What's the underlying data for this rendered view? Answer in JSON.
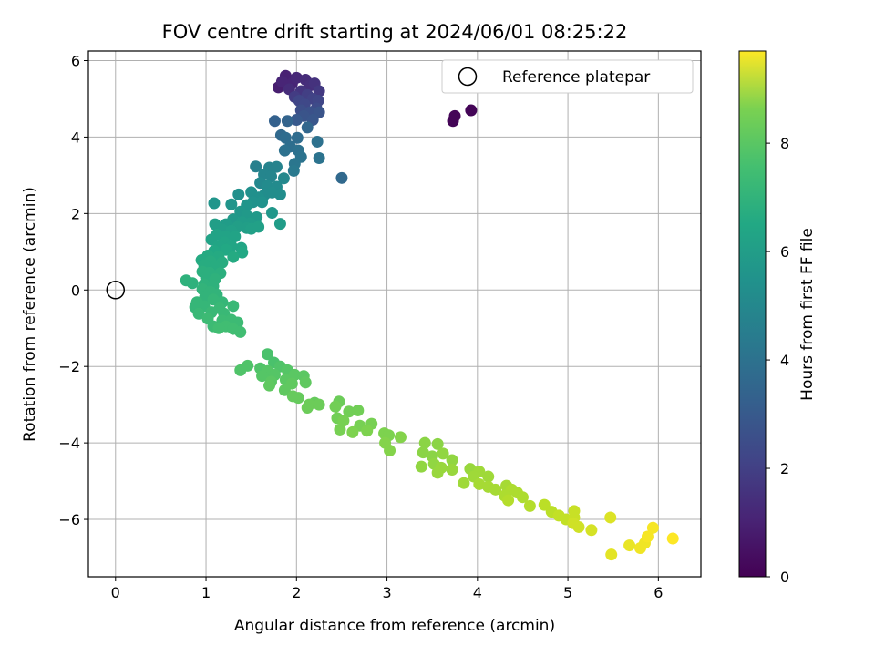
{
  "chart_data": {
    "type": "scatter",
    "title": "FOV centre drift starting at 2024/06/01 08:25:22",
    "xlabel": "Angular distance from reference (arcmin)",
    "ylabel": "Rotation from reference (arcmin)",
    "xlim": [
      -0.3,
      6.47
    ],
    "ylim": [
      -7.5,
      6.25
    ],
    "xticks": [
      0,
      1,
      2,
      3,
      4,
      5,
      6
    ],
    "yticks": [
      -6,
      -4,
      -2,
      0,
      2,
      4,
      6
    ],
    "grid": true,
    "legend": {
      "placement": "upper right",
      "entries": [
        "Reference platepar"
      ]
    },
    "reference_point": {
      "x": 0,
      "y": 0,
      "label": "Reference platepar",
      "marker": "open-circle"
    },
    "colorbar": {
      "label": "Hours from first FF file",
      "range": [
        0,
        9.7
      ],
      "ticks": [
        0,
        2,
        4,
        6,
        8
      ],
      "colormap": "viridis"
    },
    "points": [
      {
        "x": 3.73,
        "y": 4.42,
        "t": 0.1
      },
      {
        "x": 3.75,
        "y": 4.55,
        "t": 0.1
      },
      {
        "x": 3.93,
        "y": 4.7,
        "t": 0.1
      },
      {
        "x": 1.8,
        "y": 5.3,
        "t": 0.8
      },
      {
        "x": 1.88,
        "y": 5.6,
        "t": 0.9
      },
      {
        "x": 1.95,
        "y": 5.4,
        "t": 1.0
      },
      {
        "x": 2.0,
        "y": 5.55,
        "t": 1.1
      },
      {
        "x": 1.84,
        "y": 5.45,
        "t": 1.0
      },
      {
        "x": 2.1,
        "y": 5.5,
        "t": 1.2
      },
      {
        "x": 2.15,
        "y": 5.35,
        "t": 1.3
      },
      {
        "x": 2.2,
        "y": 5.4,
        "t": 1.4
      },
      {
        "x": 1.92,
        "y": 5.25,
        "t": 1.2
      },
      {
        "x": 2.05,
        "y": 5.2,
        "t": 1.5
      },
      {
        "x": 2.25,
        "y": 5.2,
        "t": 1.6
      },
      {
        "x": 1.98,
        "y": 5.05,
        "t": 1.7
      },
      {
        "x": 2.12,
        "y": 5.1,
        "t": 1.8
      },
      {
        "x": 2.18,
        "y": 5.0,
        "t": 1.9
      },
      {
        "x": 2.03,
        "y": 4.95,
        "t": 2.0
      },
      {
        "x": 2.24,
        "y": 4.95,
        "t": 2.0
      },
      {
        "x": 2.09,
        "y": 4.85,
        "t": 2.1
      },
      {
        "x": 2.22,
        "y": 4.75,
        "t": 2.2
      },
      {
        "x": 2.05,
        "y": 4.7,
        "t": 2.3
      },
      {
        "x": 2.15,
        "y": 4.65,
        "t": 2.4
      },
      {
        "x": 2.25,
        "y": 4.65,
        "t": 2.5
      },
      {
        "x": 2.08,
        "y": 4.55,
        "t": 2.5
      },
      {
        "x": 2.18,
        "y": 4.45,
        "t": 2.6
      },
      {
        "x": 2.0,
        "y": 4.45,
        "t": 2.7
      },
      {
        "x": 1.76,
        "y": 4.42,
        "t": 3.0
      },
      {
        "x": 1.9,
        "y": 4.42,
        "t": 3.1
      },
      {
        "x": 2.12,
        "y": 4.25,
        "t": 3.2
      },
      {
        "x": 1.83,
        "y": 4.05,
        "t": 3.3
      },
      {
        "x": 1.88,
        "y": 3.98,
        "t": 3.4
      },
      {
        "x": 2.01,
        "y": 3.98,
        "t": 3.4
      },
      {
        "x": 1.93,
        "y": 3.75,
        "t": 3.5
      },
      {
        "x": 2.02,
        "y": 3.65,
        "t": 3.6
      },
      {
        "x": 1.87,
        "y": 3.65,
        "t": 3.6
      },
      {
        "x": 2.23,
        "y": 3.88,
        "t": 3.6
      },
      {
        "x": 2.05,
        "y": 3.48,
        "t": 3.7
      },
      {
        "x": 2.25,
        "y": 3.45,
        "t": 3.7
      },
      {
        "x": 1.98,
        "y": 3.3,
        "t": 3.8
      },
      {
        "x": 1.97,
        "y": 3.12,
        "t": 3.9
      },
      {
        "x": 2.5,
        "y": 2.93,
        "t": 3.3
      },
      {
        "x": 1.55,
        "y": 3.23,
        "t": 4.2
      },
      {
        "x": 1.7,
        "y": 3.2,
        "t": 4.3
      },
      {
        "x": 1.78,
        "y": 3.22,
        "t": 4.3
      },
      {
        "x": 1.64,
        "y": 3.02,
        "t": 4.4
      },
      {
        "x": 1.72,
        "y": 2.97,
        "t": 4.4
      },
      {
        "x": 1.86,
        "y": 2.92,
        "t": 4.5
      },
      {
        "x": 1.6,
        "y": 2.8,
        "t": 4.5
      },
      {
        "x": 1.68,
        "y": 2.72,
        "t": 4.6
      },
      {
        "x": 1.78,
        "y": 2.7,
        "t": 4.6
      },
      {
        "x": 1.82,
        "y": 2.5,
        "t": 4.7
      },
      {
        "x": 1.65,
        "y": 2.5,
        "t": 4.7
      },
      {
        "x": 1.73,
        "y": 2.55,
        "t": 4.7
      },
      {
        "x": 1.5,
        "y": 2.56,
        "t": 4.8
      },
      {
        "x": 1.58,
        "y": 2.42,
        "t": 4.8
      },
      {
        "x": 1.36,
        "y": 2.5,
        "t": 4.8
      },
      {
        "x": 1.52,
        "y": 2.3,
        "t": 4.9
      },
      {
        "x": 1.62,
        "y": 2.3,
        "t": 4.9
      },
      {
        "x": 1.45,
        "y": 2.22,
        "t": 5.0
      },
      {
        "x": 1.28,
        "y": 2.24,
        "t": 5.0
      },
      {
        "x": 1.09,
        "y": 2.27,
        "t": 5.0
      },
      {
        "x": 1.38,
        "y": 2.05,
        "t": 5.1
      },
      {
        "x": 1.73,
        "y": 2.02,
        "t": 5.1
      },
      {
        "x": 1.45,
        "y": 1.95,
        "t": 5.2
      },
      {
        "x": 1.56,
        "y": 1.9,
        "t": 5.2
      },
      {
        "x": 1.3,
        "y": 1.85,
        "t": 5.2
      },
      {
        "x": 1.82,
        "y": 1.73,
        "t": 5.3
      },
      {
        "x": 1.4,
        "y": 1.78,
        "t": 5.3
      },
      {
        "x": 1.49,
        "y": 1.75,
        "t": 5.3
      },
      {
        "x": 1.22,
        "y": 1.72,
        "t": 5.3
      },
      {
        "x": 1.1,
        "y": 1.72,
        "t": 5.4
      },
      {
        "x": 1.35,
        "y": 1.65,
        "t": 5.4
      },
      {
        "x": 1.18,
        "y": 1.58,
        "t": 5.4
      },
      {
        "x": 1.45,
        "y": 1.62,
        "t": 5.4
      },
      {
        "x": 1.28,
        "y": 1.55,
        "t": 5.5
      },
      {
        "x": 1.5,
        "y": 1.6,
        "t": 5.5
      },
      {
        "x": 1.58,
        "y": 1.65,
        "t": 5.5
      },
      {
        "x": 1.22,
        "y": 1.4,
        "t": 5.6
      },
      {
        "x": 1.12,
        "y": 1.45,
        "t": 5.6
      },
      {
        "x": 1.32,
        "y": 1.4,
        "t": 5.6
      },
      {
        "x": 1.06,
        "y": 1.32,
        "t": 5.6
      },
      {
        "x": 1.2,
        "y": 1.25,
        "t": 5.7
      },
      {
        "x": 1.39,
        "y": 1.1,
        "t": 5.7
      },
      {
        "x": 1.14,
        "y": 1.15,
        "t": 5.7
      },
      {
        "x": 1.28,
        "y": 1.15,
        "t": 5.7
      },
      {
        "x": 1.09,
        "y": 1.02,
        "t": 5.8
      },
      {
        "x": 1.22,
        "y": 1.05,
        "t": 5.8
      },
      {
        "x": 1.4,
        "y": 0.98,
        "t": 5.8
      },
      {
        "x": 1.02,
        "y": 0.9,
        "t": 5.9
      },
      {
        "x": 1.14,
        "y": 0.88,
        "t": 5.9
      },
      {
        "x": 1.3,
        "y": 0.86,
        "t": 5.9
      },
      {
        "x": 0.95,
        "y": 0.78,
        "t": 5.9
      },
      {
        "x": 1.05,
        "y": 0.75,
        "t": 6.0
      },
      {
        "x": 1.18,
        "y": 0.72,
        "t": 6.0
      },
      {
        "x": 0.98,
        "y": 0.65,
        "t": 6.0
      },
      {
        "x": 1.1,
        "y": 0.6,
        "t": 6.0
      },
      {
        "x": 0.96,
        "y": 0.48,
        "t": 6.1
      },
      {
        "x": 1.04,
        "y": 0.45,
        "t": 6.1
      },
      {
        "x": 1.16,
        "y": 0.44,
        "t": 6.1
      },
      {
        "x": 1.0,
        "y": 0.32,
        "t": 6.1
      },
      {
        "x": 1.1,
        "y": 0.28,
        "t": 6.2
      },
      {
        "x": 0.78,
        "y": 0.25,
        "t": 6.2
      },
      {
        "x": 0.85,
        "y": 0.18,
        "t": 6.2
      },
      {
        "x": 0.98,
        "y": 0.15,
        "t": 6.2
      },
      {
        "x": 1.08,
        "y": 0.1,
        "t": 6.2
      },
      {
        "x": 0.96,
        "y": 0.02,
        "t": 6.3
      },
      {
        "x": 1.05,
        "y": -0.05,
        "t": 6.3
      },
      {
        "x": 1.12,
        "y": -0.12,
        "t": 6.3
      },
      {
        "x": 0.99,
        "y": -0.18,
        "t": 6.3
      },
      {
        "x": 1.08,
        "y": -0.25,
        "t": 6.4
      },
      {
        "x": 0.9,
        "y": -0.32,
        "t": 6.4
      },
      {
        "x": 1.18,
        "y": -0.32,
        "t": 6.4
      },
      {
        "x": 0.88,
        "y": -0.45,
        "t": 6.4
      },
      {
        "x": 0.98,
        "y": -0.42,
        "t": 6.4
      },
      {
        "x": 1.15,
        "y": -0.48,
        "t": 6.5
      },
      {
        "x": 1.3,
        "y": -0.42,
        "t": 6.5
      },
      {
        "x": 0.92,
        "y": -0.62,
        "t": 6.5
      },
      {
        "x": 1.06,
        "y": -0.58,
        "t": 6.5
      },
      {
        "x": 1.2,
        "y": -0.62,
        "t": 6.5
      },
      {
        "x": 1.02,
        "y": -0.75,
        "t": 6.6
      },
      {
        "x": 1.18,
        "y": -0.8,
        "t": 6.6
      },
      {
        "x": 1.28,
        "y": -0.78,
        "t": 6.6
      },
      {
        "x": 1.35,
        "y": -0.85,
        "t": 6.6
      },
      {
        "x": 1.08,
        "y": -0.95,
        "t": 6.6
      },
      {
        "x": 1.22,
        "y": -0.95,
        "t": 6.7
      },
      {
        "x": 1.14,
        "y": -1.0,
        "t": 6.7
      },
      {
        "x": 1.3,
        "y": -1.02,
        "t": 6.7
      },
      {
        "x": 1.38,
        "y": -1.1,
        "t": 6.7
      },
      {
        "x": 1.68,
        "y": -1.68,
        "t": 6.9
      },
      {
        "x": 1.75,
        "y": -1.9,
        "t": 6.9
      },
      {
        "x": 1.46,
        "y": -1.98,
        "t": 7.0
      },
      {
        "x": 1.38,
        "y": -2.1,
        "t": 7.0
      },
      {
        "x": 1.6,
        "y": -2.05,
        "t": 7.0
      },
      {
        "x": 1.82,
        "y": -2.0,
        "t": 7.0
      },
      {
        "x": 1.68,
        "y": -2.12,
        "t": 7.1
      },
      {
        "x": 1.9,
        "y": -2.1,
        "t": 7.1
      },
      {
        "x": 1.76,
        "y": -2.22,
        "t": 7.1
      },
      {
        "x": 1.62,
        "y": -2.25,
        "t": 7.1
      },
      {
        "x": 1.98,
        "y": -2.22,
        "t": 7.2
      },
      {
        "x": 2.08,
        "y": -2.25,
        "t": 7.2
      },
      {
        "x": 1.88,
        "y": -2.35,
        "t": 7.2
      },
      {
        "x": 1.72,
        "y": -2.4,
        "t": 7.2
      },
      {
        "x": 2.1,
        "y": -2.42,
        "t": 7.3
      },
      {
        "x": 1.95,
        "y": -2.45,
        "t": 7.3
      },
      {
        "x": 1.7,
        "y": -2.5,
        "t": 7.3
      },
      {
        "x": 1.87,
        "y": -2.62,
        "t": 7.3
      },
      {
        "x": 2.02,
        "y": -2.82,
        "t": 7.4
      },
      {
        "x": 1.96,
        "y": -2.78,
        "t": 7.4
      },
      {
        "x": 2.2,
        "y": -2.95,
        "t": 7.4
      },
      {
        "x": 2.14,
        "y": -3.0,
        "t": 7.5
      },
      {
        "x": 2.25,
        "y": -3.0,
        "t": 7.5
      },
      {
        "x": 2.12,
        "y": -3.08,
        "t": 7.5
      },
      {
        "x": 2.47,
        "y": -2.92,
        "t": 7.5
      },
      {
        "x": 2.43,
        "y": -3.05,
        "t": 7.6
      },
      {
        "x": 2.58,
        "y": -3.18,
        "t": 7.6
      },
      {
        "x": 2.68,
        "y": -3.15,
        "t": 7.6
      },
      {
        "x": 2.45,
        "y": -3.35,
        "t": 7.6
      },
      {
        "x": 2.52,
        "y": -3.42,
        "t": 7.7
      },
      {
        "x": 2.7,
        "y": -3.55,
        "t": 7.7
      },
      {
        "x": 2.83,
        "y": -3.5,
        "t": 7.7
      },
      {
        "x": 2.48,
        "y": -3.65,
        "t": 7.7
      },
      {
        "x": 2.62,
        "y": -3.72,
        "t": 7.8
      },
      {
        "x": 2.78,
        "y": -3.68,
        "t": 7.8
      },
      {
        "x": 2.97,
        "y": -3.75,
        "t": 7.8
      },
      {
        "x": 3.02,
        "y": -3.8,
        "t": 7.8
      },
      {
        "x": 3.15,
        "y": -3.85,
        "t": 7.9
      },
      {
        "x": 2.98,
        "y": -4.0,
        "t": 7.9
      },
      {
        "x": 3.03,
        "y": -4.2,
        "t": 7.9
      },
      {
        "x": 3.42,
        "y": -4.0,
        "t": 8.0
      },
      {
        "x": 3.56,
        "y": -4.03,
        "t": 8.0
      },
      {
        "x": 3.4,
        "y": -4.25,
        "t": 8.0
      },
      {
        "x": 3.5,
        "y": -4.35,
        "t": 8.0
      },
      {
        "x": 3.62,
        "y": -4.28,
        "t": 8.1
      },
      {
        "x": 3.72,
        "y": -4.45,
        "t": 8.1
      },
      {
        "x": 3.52,
        "y": -4.55,
        "t": 8.1
      },
      {
        "x": 3.38,
        "y": -4.62,
        "t": 8.1
      },
      {
        "x": 3.6,
        "y": -4.65,
        "t": 8.2
      },
      {
        "x": 3.72,
        "y": -4.7,
        "t": 8.2
      },
      {
        "x": 3.56,
        "y": -4.78,
        "t": 8.2
      },
      {
        "x": 3.92,
        "y": -4.68,
        "t": 8.2
      },
      {
        "x": 4.02,
        "y": -4.75,
        "t": 8.3
      },
      {
        "x": 3.96,
        "y": -4.88,
        "t": 8.3
      },
      {
        "x": 4.12,
        "y": -4.88,
        "t": 8.3
      },
      {
        "x": 3.85,
        "y": -5.05,
        "t": 8.3
      },
      {
        "x": 4.02,
        "y": -5.08,
        "t": 8.4
      },
      {
        "x": 4.12,
        "y": -5.15,
        "t": 8.4
      },
      {
        "x": 4.2,
        "y": -5.22,
        "t": 8.4
      },
      {
        "x": 4.32,
        "y": -5.12,
        "t": 8.4
      },
      {
        "x": 4.38,
        "y": -5.22,
        "t": 8.5
      },
      {
        "x": 4.44,
        "y": -5.3,
        "t": 8.5
      },
      {
        "x": 4.3,
        "y": -5.38,
        "t": 8.5
      },
      {
        "x": 4.5,
        "y": -5.42,
        "t": 8.5
      },
      {
        "x": 4.34,
        "y": -5.5,
        "t": 8.6
      },
      {
        "x": 4.58,
        "y": -5.65,
        "t": 8.6
      },
      {
        "x": 4.74,
        "y": -5.62,
        "t": 8.7
      },
      {
        "x": 4.82,
        "y": -5.8,
        "t": 8.7
      },
      {
        "x": 4.9,
        "y": -5.9,
        "t": 8.8
      },
      {
        "x": 4.98,
        "y": -6.0,
        "t": 8.8
      },
      {
        "x": 5.07,
        "y": -5.95,
        "t": 8.9
      },
      {
        "x": 5.07,
        "y": -5.78,
        "t": 8.9
      },
      {
        "x": 5.06,
        "y": -6.1,
        "t": 9.0
      },
      {
        "x": 5.12,
        "y": -6.2,
        "t": 9.0
      },
      {
        "x": 5.26,
        "y": -6.28,
        "t": 9.1
      },
      {
        "x": 5.47,
        "y": -5.95,
        "t": 9.2
      },
      {
        "x": 5.48,
        "y": -6.92,
        "t": 9.3
      },
      {
        "x": 5.68,
        "y": -6.68,
        "t": 9.4
      },
      {
        "x": 5.8,
        "y": -6.75,
        "t": 9.5
      },
      {
        "x": 5.85,
        "y": -6.62,
        "t": 9.5
      },
      {
        "x": 5.88,
        "y": -6.45,
        "t": 9.6
      },
      {
        "x": 5.94,
        "y": -6.22,
        "t": 9.6
      },
      {
        "x": 6.16,
        "y": -6.5,
        "t": 9.7
      }
    ]
  }
}
